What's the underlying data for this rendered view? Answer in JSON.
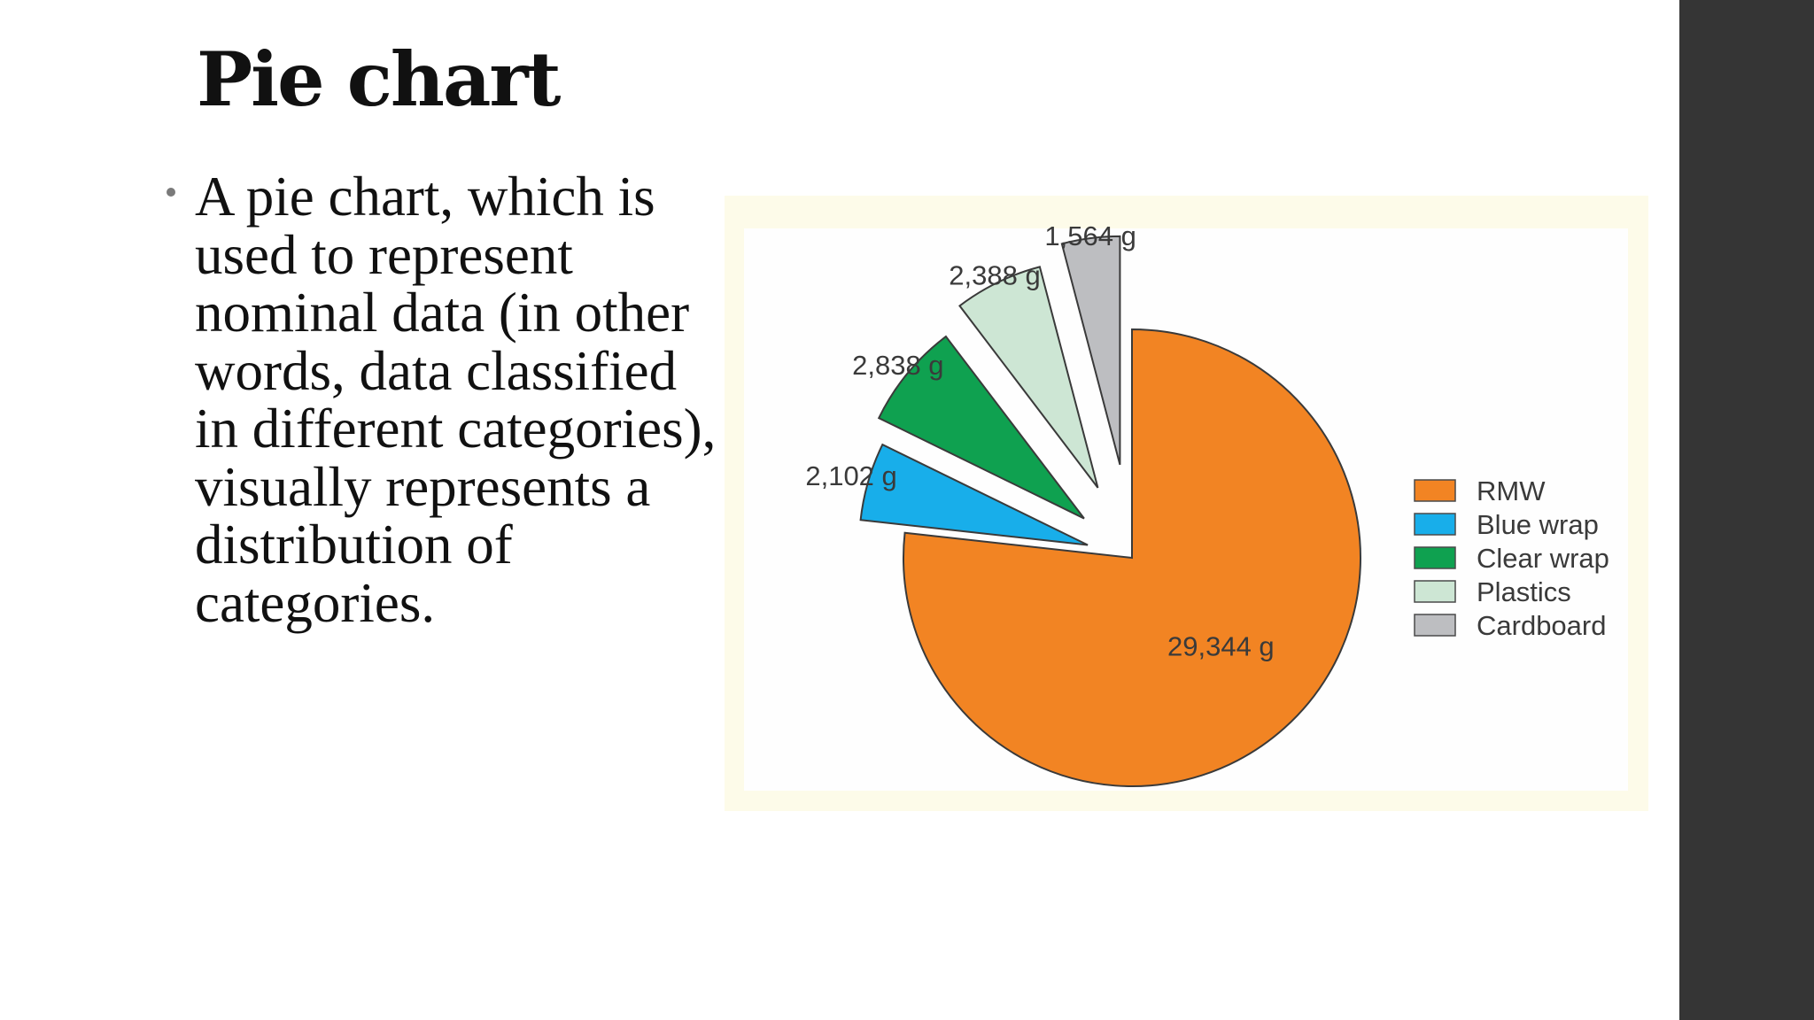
{
  "slide": {
    "title": "Pie chart",
    "bullet": "A pie chart, which is used to represent nominal data (in other words, data classified in different categories), visually represents a distribution of categories."
  },
  "chart_data": {
    "type": "pie",
    "title": "",
    "slices": [
      {
        "label": "RMW",
        "value": 29344,
        "data_label": "29,344 g",
        "color": "#f28423",
        "exploded": false
      },
      {
        "label": "Blue wrap",
        "value": 2102,
        "data_label": "2,102 g",
        "color": "#18aeea",
        "exploded": true
      },
      {
        "label": "Clear wrap",
        "value": 2838,
        "data_label": "2,838 g",
        "color": "#0fa150",
        "exploded": true
      },
      {
        "label": "Plastics",
        "value": 2388,
        "data_label": "2,388 g",
        "color": "#cde6d4",
        "exploded": true
      },
      {
        "label": "Cardboard",
        "value": 1564,
        "data_label": "1,564 g",
        "color": "#bdbec1",
        "exploded": true
      }
    ],
    "unit": "g",
    "legend": "right"
  },
  "colors": {
    "right_band": "#353535",
    "frame": "#fdfbe9",
    "text": "#111111"
  }
}
